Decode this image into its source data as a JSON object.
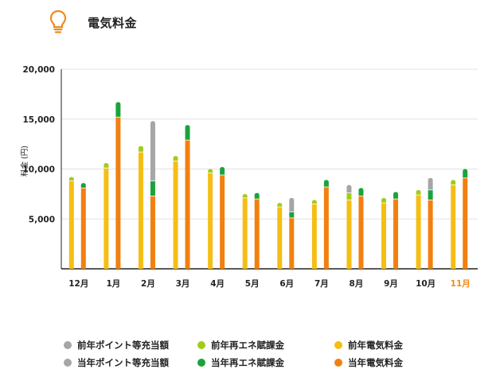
{
  "header": {
    "title": "電気料金",
    "icon": "lightbulb-icon",
    "icon_color": "#F08A1C"
  },
  "chart_data": {
    "type": "bar",
    "ylabel": "料金 (円)",
    "ylim": [
      0,
      20000
    ],
    "yticks": [
      "20,000",
      "15,000",
      "10,000",
      "5,000"
    ],
    "ytick_values": [
      20000,
      15000,
      10000,
      5000
    ],
    "grid": true,
    "categories": [
      "12月",
      "1月",
      "2月",
      "3月",
      "4月",
      "5月",
      "6月",
      "7月",
      "8月",
      "9月",
      "10月",
      "11月"
    ],
    "highlight_category": "11月",
    "highlight_color": "#F08A1C",
    "colors": {
      "prev_electric": "#F5BE14",
      "prev_renew": "#A3CC1A",
      "prev_point": "#A6A6A6",
      "curr_electric": "#F2800F",
      "curr_renew": "#1AA33C",
      "curr_point": "#A6A6A6"
    },
    "series": [
      {
        "name": "前年電気料金",
        "key": "prev_electric",
        "values": [
          8800,
          10100,
          11700,
          10800,
          9600,
          7100,
          6200,
          6500,
          6900,
          6600,
          7400,
          8400
        ]
      },
      {
        "name": "前年再エネ賦課金",
        "key": "prev_renew",
        "values": [
          400,
          500,
          600,
          500,
          400,
          400,
          400,
          400,
          700,
          500,
          500,
          500
        ]
      },
      {
        "name": "前年ポイント等充当額",
        "key": "prev_point",
        "values": [
          0,
          0,
          0,
          0,
          0,
          0,
          0,
          0,
          800,
          0,
          0,
          0
        ]
      },
      {
        "name": "当年電気料金",
        "key": "curr_electric",
        "values": [
          8100,
          15200,
          7300,
          12900,
          9400,
          7000,
          5100,
          8200,
          7300,
          7000,
          6900,
          9100
        ]
      },
      {
        "name": "当年再エネ賦課金",
        "key": "curr_renew",
        "values": [
          500,
          1500,
          1500,
          1500,
          800,
          600,
          600,
          700,
          800,
          700,
          1000,
          900
        ]
      },
      {
        "name": "当年ポイント等充当額",
        "key": "curr_point",
        "values": [
          0,
          0,
          6000,
          0,
          0,
          0,
          1400,
          0,
          0,
          0,
          1200,
          0
        ]
      }
    ]
  },
  "legend": [
    {
      "label": "前年ポイント等充当額",
      "color": "#A6A6A6"
    },
    {
      "label": "前年再エネ賦課金",
      "color": "#A3CC1A"
    },
    {
      "label": "前年電気料金",
      "color": "#F5BE14"
    },
    {
      "label": "当年ポイント等充当額",
      "color": "#A6A6A6"
    },
    {
      "label": "当年再エネ賦課金",
      "color": "#1AA33C"
    },
    {
      "label": "当年電気料金",
      "color": "#F2800F"
    }
  ]
}
